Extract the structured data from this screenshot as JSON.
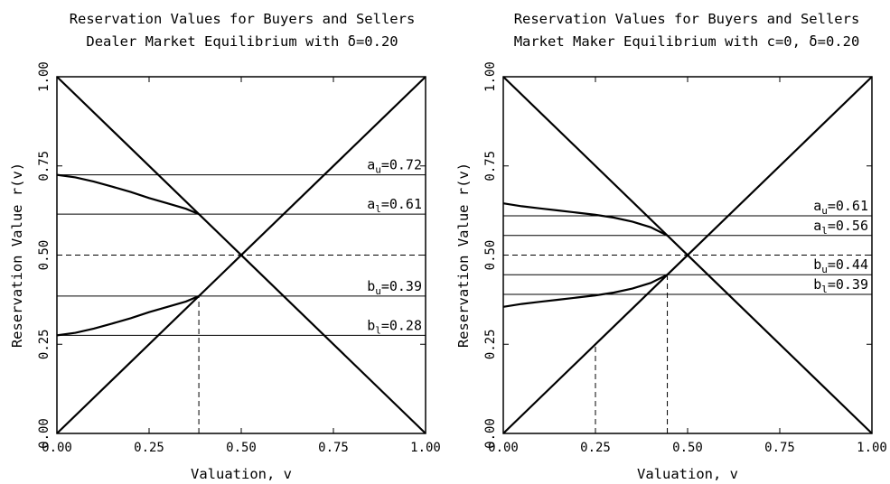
{
  "chart_data": [
    {
      "type": "line",
      "title_line1": "Reservation Values for Buyers and Sellers",
      "title_line2": "Dealer Market Equilibrium with δ=0.20",
      "xlabel": "Valuation, v",
      "ylabel": "Reservation Value r(v)",
      "xlim": [
        0,
        1
      ],
      "ylim": [
        0,
        1
      ],
      "x_ticks": [
        "0.00",
        "0.25",
        "0.50",
        "0.75",
        "1.00"
      ],
      "y_ticks": [
        "0.00",
        "0.25",
        "0.50",
        "0.75",
        "1.00"
      ],
      "levels": [
        {
          "base": "a",
          "sub": "u",
          "text": "=0.72",
          "value": 0.725
        },
        {
          "base": "a",
          "sub": "l",
          "text": "=0.61",
          "value": 0.615
        },
        {
          "base": "b",
          "sub": "u",
          "text": "=0.39",
          "value": 0.385
        },
        {
          "base": "b",
          "sub": "l",
          "text": "=0.28",
          "value": 0.275
        }
      ],
      "midline": 0.5,
      "seller_curve": {
        "x": [
          0,
          0.05,
          0.1,
          0.15,
          0.2,
          0.25,
          0.3,
          0.35,
          0.385
        ],
        "y": [
          0.725,
          0.718,
          0.706,
          0.692,
          0.677,
          0.66,
          0.645,
          0.63,
          0.615
        ]
      },
      "buyer_curve": {
        "x": [
          0,
          0.05,
          0.1,
          0.15,
          0.2,
          0.25,
          0.3,
          0.35,
          0.385
        ],
        "y": [
          0.275,
          0.282,
          0.294,
          0.308,
          0.323,
          0.34,
          0.355,
          0.37,
          0.385
        ]
      },
      "vertical_dashes": [
        0.385
      ]
    },
    {
      "type": "line",
      "title_line1": "Reservation Values for Buyers and Sellers",
      "title_line2": "Market Maker Equilibrium with c=0, δ=0.20",
      "xlabel": "Valuation, v",
      "ylabel": "Reservation Value r(v)",
      "xlim": [
        0,
        1
      ],
      "ylim": [
        0,
        1
      ],
      "x_ticks": [
        "0.00",
        "0.25",
        "0.50",
        "0.75",
        "1.00"
      ],
      "y_ticks": [
        "0.00",
        "0.25",
        "0.50",
        "0.75",
        "1.00"
      ],
      "levels": [
        {
          "base": "a",
          "sub": "u",
          "text": "=0.61",
          "value": 0.61
        },
        {
          "base": "a",
          "sub": "l",
          "text": "=0.56",
          "value": 0.555
        },
        {
          "base": "b",
          "sub": "u",
          "text": "=0.44",
          "value": 0.445
        },
        {
          "base": "b",
          "sub": "l",
          "text": "=0.39",
          "value": 0.39
        }
      ],
      "midline": 0.5,
      "seller_curve": {
        "x": [
          0,
          0.05,
          0.1,
          0.15,
          0.2,
          0.25,
          0.3,
          0.35,
          0.4,
          0.445
        ],
        "y": [
          0.645,
          0.637,
          0.631,
          0.625,
          0.619,
          0.613,
          0.605,
          0.594,
          0.578,
          0.555
        ]
      },
      "buyer_curve": {
        "x": [
          0,
          0.05,
          0.1,
          0.15,
          0.2,
          0.25,
          0.3,
          0.35,
          0.4,
          0.445
        ],
        "y": [
          0.355,
          0.363,
          0.369,
          0.375,
          0.381,
          0.387,
          0.395,
          0.406,
          0.422,
          0.445
        ]
      },
      "vertical_dashes": [
        0.25,
        0.445
      ]
    }
  ]
}
